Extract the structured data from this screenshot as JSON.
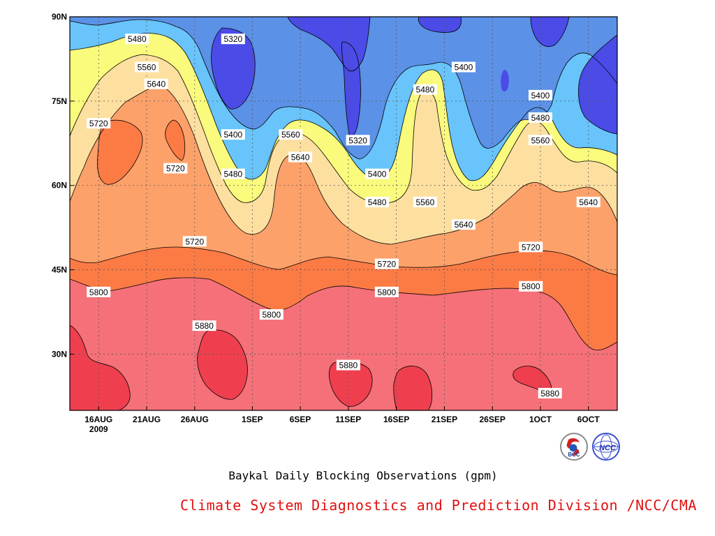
{
  "chart_data": {
    "type": "heatmap",
    "subtype": "filled-contour",
    "title": "Baykal Daily Blocking Observations (gpm)",
    "credit": "Climate System Diagnostics and Prediction Division /NCC/CMA",
    "xlabel": "",
    "ylabel": "",
    "x_range": [
      "2009-08-13",
      "2009-10-09"
    ],
    "y_range": [
      20,
      90
    ],
    "x_ticks": [
      {
        "date": "2009-08-16",
        "label": "16AUG",
        "sublabel": "2009"
      },
      {
        "date": "2009-08-21",
        "label": "21AUG"
      },
      {
        "date": "2009-08-26",
        "label": "26AUG"
      },
      {
        "date": "2009-09-01",
        "label": "1SEP"
      },
      {
        "date": "2009-09-06",
        "label": "6SEP"
      },
      {
        "date": "2009-09-11",
        "label": "11SEP"
      },
      {
        "date": "2009-09-16",
        "label": "16SEP"
      },
      {
        "date": "2009-09-21",
        "label": "21SEP"
      },
      {
        "date": "2009-09-26",
        "label": "26SEP"
      },
      {
        "date": "2009-10-01",
        "label": "1OCT"
      },
      {
        "date": "2009-10-06",
        "label": "6OCT"
      }
    ],
    "y_ticks": [
      {
        "lat": 30,
        "label": "30N"
      },
      {
        "lat": 45,
        "label": "45N"
      },
      {
        "lat": 60,
        "label": "60N"
      },
      {
        "lat": 75,
        "label": "75N"
      },
      {
        "lat": 90,
        "label": "90N"
      }
    ],
    "grid": "dotted",
    "contour_levels": [
      5320,
      5400,
      5480,
      5560,
      5640,
      5720,
      5800,
      5880
    ],
    "fill_colors": {
      "below_5320": "#4b4be8",
      "5320_5400": "#5b91e6",
      "5400_5480": "#68c4fb",
      "5480_5560": "#fafa7c",
      "5560_5640": "#fde0a0",
      "5640_5720": "#fda16a",
      "5720_5800": "#fc7b45",
      "5800_5880": "#f57078",
      "above_5880": "#ef3f4f"
    },
    "contour_labels": [
      {
        "date": "2009-08-20",
        "lat": 86,
        "value": "5480"
      },
      {
        "date": "2009-08-30",
        "lat": 86,
        "value": "5320"
      },
      {
        "date": "2009-08-21",
        "lat": 81,
        "value": "5560"
      },
      {
        "date": "2009-08-22",
        "lat": 78,
        "value": "5640"
      },
      {
        "date": "2009-08-16",
        "lat": 71,
        "value": "5720"
      },
      {
        "date": "2009-08-24",
        "lat": 63,
        "value": "5720"
      },
      {
        "date": "2009-08-30",
        "lat": 69,
        "value": "5400"
      },
      {
        "date": "2009-08-30",
        "lat": 62,
        "value": "5480"
      },
      {
        "date": "2009-09-05",
        "lat": 69,
        "value": "5560"
      },
      {
        "date": "2009-09-06",
        "lat": 65,
        "value": "5640"
      },
      {
        "date": "2009-09-12",
        "lat": 68,
        "value": "5320"
      },
      {
        "date": "2009-09-14",
        "lat": 62,
        "value": "5400"
      },
      {
        "date": "2009-09-14",
        "lat": 57,
        "value": "5480"
      },
      {
        "date": "2009-09-19",
        "lat": 57,
        "value": "5560"
      },
      {
        "date": "2009-09-19",
        "lat": 77,
        "value": "5480"
      },
      {
        "date": "2009-09-23",
        "lat": 81,
        "value": "5400"
      },
      {
        "date": "2009-09-23",
        "lat": 53,
        "value": "5640"
      },
      {
        "date": "2009-08-26",
        "lat": 50,
        "value": "5720"
      },
      {
        "date": "2009-09-15",
        "lat": 46,
        "value": "5720"
      },
      {
        "date": "2009-09-30",
        "lat": 49,
        "value": "5720"
      },
      {
        "date": "2009-10-01",
        "lat": 76,
        "value": "5400"
      },
      {
        "date": "2009-10-01",
        "lat": 72,
        "value": "5480"
      },
      {
        "date": "2009-10-01",
        "lat": 68,
        "value": "5560"
      },
      {
        "date": "2009-10-06",
        "lat": 57,
        "value": "5640"
      },
      {
        "date": "2009-08-16",
        "lat": 41,
        "value": "5800"
      },
      {
        "date": "2009-09-03",
        "lat": 37,
        "value": "5800"
      },
      {
        "date": "2009-09-15",
        "lat": 41,
        "value": "5800"
      },
      {
        "date": "2009-09-30",
        "lat": 42,
        "value": "5800"
      },
      {
        "date": "2009-08-27",
        "lat": 35,
        "value": "5880"
      },
      {
        "date": "2009-09-11",
        "lat": 28,
        "value": "5880"
      },
      {
        "date": "2009-10-02",
        "lat": 23,
        "value": "5880"
      }
    ]
  },
  "logos": [
    {
      "name": "bcc-logo",
      "text": "BCC"
    },
    {
      "name": "ncc-logo",
      "text": "NCC"
    }
  ]
}
